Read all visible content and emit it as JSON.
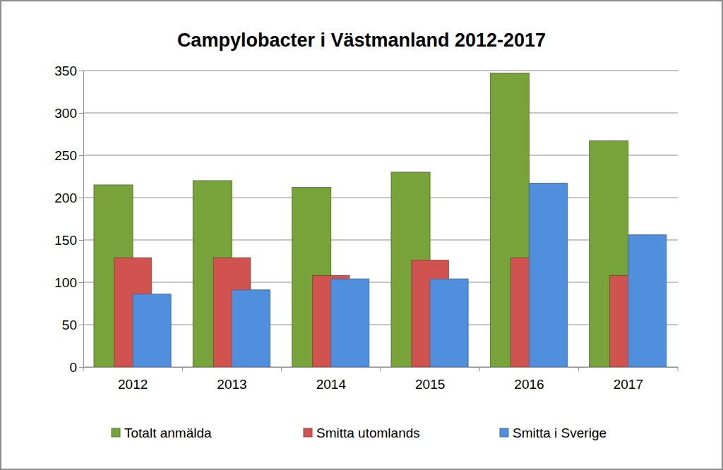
{
  "chart_data": {
    "type": "bar",
    "title": "Campylobacter i Västmanland 2012-2017",
    "categories": [
      "2012",
      "2013",
      "2014",
      "2015",
      "2016",
      "2017"
    ],
    "series": [
      {
        "name": "Totalt anmälda",
        "color": "#77a33a",
        "values": [
          215,
          220,
          212,
          230,
          347,
          267
        ]
      },
      {
        "name": "Smitta utomlands",
        "color": "#d0534f",
        "values": [
          129,
          129,
          108,
          126,
          129,
          108
        ]
      },
      {
        "name": "Smitta i Sverige",
        "color": "#4f8fde",
        "values": [
          86,
          91,
          104,
          104,
          217,
          156
        ]
      }
    ],
    "ylim": [
      0,
      350
    ],
    "yticks": [
      0,
      50,
      100,
      150,
      200,
      250,
      300,
      350
    ],
    "grid": true,
    "legend": "bottom"
  }
}
